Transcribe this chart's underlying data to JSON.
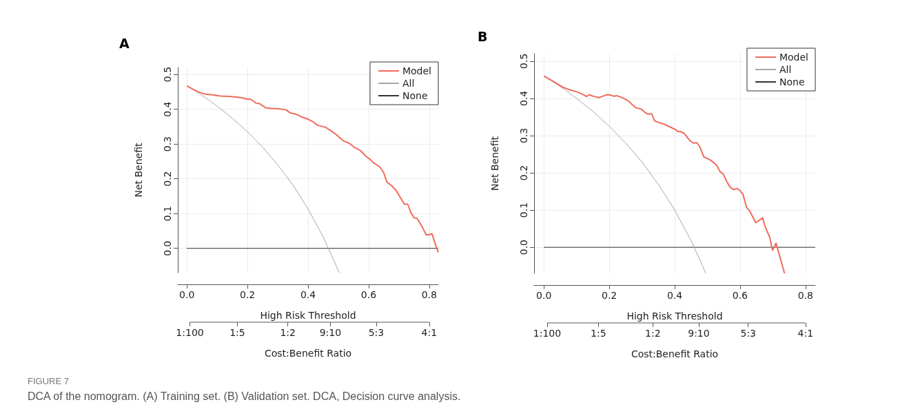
{
  "chart_data": [
    {
      "type": "line",
      "title": "A",
      "xlabel": "High Risk Threshold",
      "ylabel": "Net Benefit",
      "x2label": "Cost:Benefit Ratio",
      "xlim": [
        -0.03,
        0.83
      ],
      "xticks": [
        {
          "value": 0,
          "label": "0.0"
        },
        0.2,
        0.4,
        0.6,
        0.8
      ],
      "ylim": [
        -0.07,
        0.52
      ],
      "yticks": [
        {
          "value": 0,
          "label": "0.0"
        },
        0.1,
        0.2,
        0.3,
        0.4,
        0.5
      ],
      "grid": true,
      "legend": "top right",
      "annotations": [
        "FIGURE 7",
        "DCA of the nomogram. (A) Training set. (B) Validation set. DCA, Decision curve analysis.",
        "1:100",
        "1:5",
        "1:2",
        "9:10",
        "5:3",
        "4:1"
      ],
      "series": [
        {
          "name": "Model",
          "color": "#f06b5b",
          "x": [
            0,
            0.034,
            0.057,
            0.08,
            0.111,
            0.141,
            0.164,
            0.187,
            0.198,
            0.21,
            0.229,
            0.24,
            0.26,
            0.279,
            0.305,
            0.328,
            0.34,
            0.359,
            0.378,
            0.401,
            0.416,
            0.431,
            0.458,
            0.477,
            0.496,
            0.515,
            0.538,
            0.553,
            0.573,
            0.592,
            0.603,
            0.615,
            0.637,
            0.649,
            0.66,
            0.676,
            0.691,
            0.718,
            0.729,
            0.74,
            0.75,
            0.76,
            0.779,
            0.79,
            0.798,
            0.809,
            0.821,
            0.83
          ],
          "values": [
            0.467,
            0.451,
            0.444,
            0.442,
            0.438,
            0.437,
            0.435,
            0.432,
            0.429,
            0.429,
            0.417,
            0.416,
            0.404,
            0.402,
            0.401,
            0.398,
            0.39,
            0.386,
            0.378,
            0.371,
            0.364,
            0.354,
            0.348,
            0.337,
            0.325,
            0.31,
            0.301,
            0.29,
            0.281,
            0.264,
            0.257,
            0.247,
            0.234,
            0.219,
            0.191,
            0.18,
            0.166,
            0.127,
            0.127,
            0.102,
            0.088,
            0.086,
            0.058,
            0.039,
            0.039,
            0.042,
            0.01,
            -0.012
          ]
        },
        {
          "name": "All",
          "color": "#a6a6a6",
          "x": [
            0,
            0.05,
            0.1,
            0.15,
            0.2,
            0.25,
            0.3,
            0.35,
            0.4,
            0.45,
            0.5,
            0.503
          ],
          "values": [
            0.468,
            0.44,
            0.409,
            0.374,
            0.335,
            0.291,
            0.24,
            0.182,
            0.113,
            0.033,
            -0.064,
            -0.07
          ]
        },
        {
          "name": "None",
          "color": "#333333",
          "x": [
            0,
            0.83
          ],
          "values": [
            0,
            0
          ]
        }
      ]
    },
    {
      "type": "line",
      "title": "B",
      "xlabel": "High Risk Threshold",
      "ylabel": "Net Benefit",
      "x2label": "Cost:Benefit Ratio",
      "xlim": [
        -0.03,
        0.83
      ],
      "xticks": [
        {
          "value": 0,
          "label": "0.0"
        },
        0.2,
        0.4,
        0.6,
        0.8
      ],
      "ylim": [
        -0.07,
        0.52
      ],
      "yticks": [
        {
          "value": 0,
          "label": "0.0"
        },
        0.1,
        0.2,
        0.3,
        0.4,
        0.5
      ],
      "grid": true,
      "legend": "top right",
      "annotations": [
        "1:100",
        "1:5",
        "1:2",
        "9:10",
        "5:3",
        "4:1"
      ],
      "series": [
        {
          "name": "Model",
          "color": "#f06b5b",
          "x": [
            0,
            0.03,
            0.058,
            0.079,
            0.1,
            0.118,
            0.13,
            0.139,
            0.15,
            0.168,
            0.178,
            0.193,
            0.203,
            0.213,
            0.224,
            0.242,
            0.259,
            0.27,
            0.281,
            0.298,
            0.311,
            0.319,
            0.33,
            0.339,
            0.369,
            0.401,
            0.41,
            0.418,
            0.429,
            0.447,
            0.457,
            0.468,
            0.478,
            0.489,
            0.51,
            0.528,
            0.539,
            0.549,
            0.56,
            0.57,
            0.581,
            0.59,
            0.599,
            0.609,
            0.62,
            0.63,
            0.648,
            0.669,
            0.676,
            0.691,
            0.699,
            0.71,
            0.736
          ],
          "values": [
            0.46,
            0.445,
            0.43,
            0.423,
            0.418,
            0.411,
            0.405,
            0.41,
            0.406,
            0.402,
            0.405,
            0.41,
            0.409,
            0.406,
            0.407,
            0.401,
            0.393,
            0.383,
            0.375,
            0.371,
            0.361,
            0.358,
            0.358,
            0.339,
            0.33,
            0.317,
            0.311,
            0.311,
            0.306,
            0.286,
            0.28,
            0.281,
            0.268,
            0.243,
            0.234,
            0.221,
            0.203,
            0.196,
            0.175,
            0.161,
            0.155,
            0.158,
            0.153,
            0.142,
            0.107,
            0.097,
            0.066,
            0.079,
            0.057,
            0.026,
            -0.008,
            0.011,
            -0.07
          ]
        },
        {
          "name": "All",
          "color": "#a6a6a6",
          "x": [
            0,
            0.05,
            0.1,
            0.15,
            0.2,
            0.25,
            0.3,
            0.35,
            0.4,
            0.45,
            0.49,
            0.495
          ],
          "values": [
            0.46,
            0.432,
            0.4,
            0.365,
            0.325,
            0.28,
            0.229,
            0.169,
            0.1,
            0.018,
            -0.059,
            -0.07
          ]
        },
        {
          "name": "None",
          "color": "#333333",
          "x": [
            0,
            0.83
          ],
          "values": [
            0,
            0
          ]
        }
      ]
    }
  ]
}
